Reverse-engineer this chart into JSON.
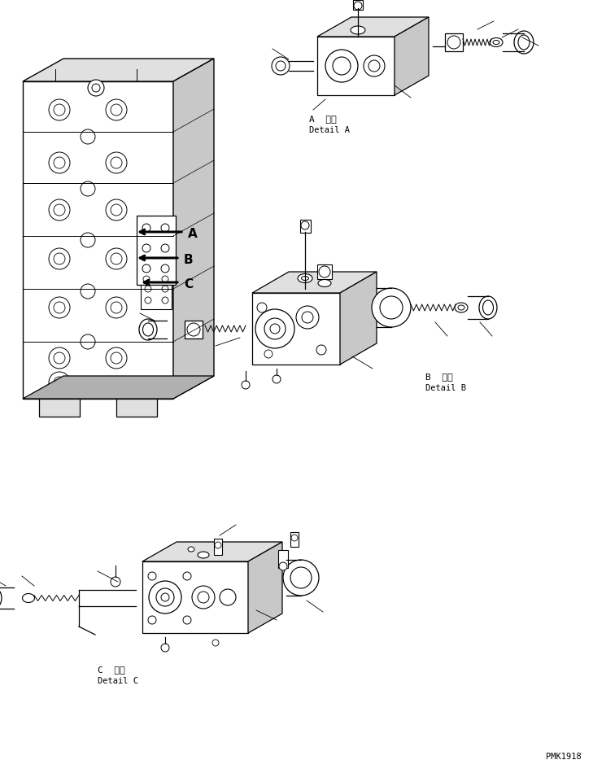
{
  "bg_color": "#ffffff",
  "line_color": "#000000",
  "fig_width": 7.29,
  "fig_height": 9.5,
  "dpi": 100,
  "label_A_jp": "A  詳細",
  "label_A_en": "Detail A",
  "label_B_jp": "B  詳細",
  "label_B_en": "Detail B",
  "label_C_jp": "C  詳細",
  "label_C_en": "Detail C",
  "watermark": "PMK1918"
}
